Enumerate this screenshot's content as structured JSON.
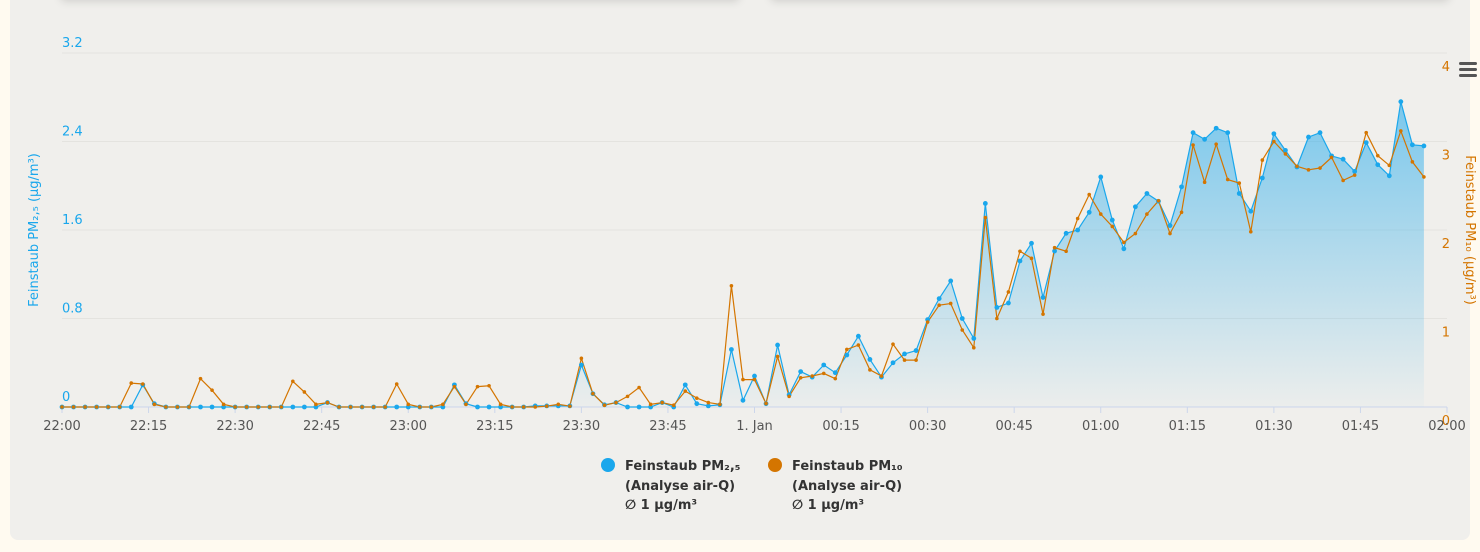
{
  "chart_data": {
    "type": "line",
    "y_label": "Feinstaub PM₂,₅ (µg/m³)",
    "y2_label": "Feinstaub PM₁₀ (µg/m³)",
    "x": [
      "22:00",
      "22:02",
      "22:04",
      "22:06",
      "22:08",
      "22:10",
      "22:12",
      "22:14",
      "22:16",
      "22:18",
      "22:20",
      "22:22",
      "22:24",
      "22:26",
      "22:28",
      "22:30",
      "22:32",
      "22:34",
      "22:36",
      "22:38",
      "22:40",
      "22:42",
      "22:44",
      "22:46",
      "22:48",
      "22:50",
      "22:52",
      "22:54",
      "22:56",
      "22:58",
      "23:00",
      "23:02",
      "23:04",
      "23:06",
      "23:08",
      "23:10",
      "23:12",
      "23:14",
      "23:16",
      "23:18",
      "23:20",
      "23:22",
      "23:24",
      "23:26",
      "23:28",
      "23:30",
      "23:32",
      "23:34",
      "23:36",
      "23:38",
      "23:40",
      "23:42",
      "23:44",
      "23:46",
      "23:48",
      "23:50",
      "23:52",
      "23:54",
      "23:56",
      "23:58",
      "00:00",
      "00:02",
      "00:04",
      "00:06",
      "00:08",
      "00:10",
      "00:12",
      "00:14",
      "00:16",
      "00:18",
      "00:20",
      "00:22",
      "00:24",
      "00:26",
      "00:28",
      "00:30",
      "00:32",
      "00:34",
      "00:36",
      "00:38",
      "00:40",
      "00:42",
      "00:44",
      "00:46",
      "00:48",
      "00:50",
      "00:52",
      "00:54",
      "00:56",
      "00:58",
      "01:00",
      "01:02",
      "01:04",
      "01:06",
      "01:08",
      "01:10",
      "01:12",
      "01:14",
      "01:16",
      "01:18",
      "01:20",
      "01:22",
      "01:24",
      "01:26",
      "01:28",
      "01:30",
      "01:32",
      "01:34",
      "01:36",
      "01:38",
      "01:40",
      "01:42",
      "01:44",
      "01:46",
      "01:48",
      "01:50",
      "01:52",
      "01:54",
      "01:56"
    ],
    "xlim": [
      "22:00",
      "02:00"
    ],
    "xticks": [
      "22:00",
      "22:15",
      "22:30",
      "22:45",
      "23:00",
      "23:15",
      "23:30",
      "23:45",
      {
        "value": "00:00",
        "label": "1. Jan"
      },
      "00:15",
      "00:30",
      "00:45",
      "01:00",
      "01:15",
      "01:30",
      "01:45",
      "02:00"
    ],
    "ylim": [
      0,
      3.2
    ],
    "yticks": [
      0,
      0.8,
      1.6,
      2.4,
      3.2
    ],
    "y2lim": [
      0,
      4
    ],
    "y2ticks": [
      0,
      1,
      2,
      3,
      4
    ],
    "grid": true,
    "legend": "bottom",
    "series": [
      {
        "name": "Feinstaub PM₂,₅",
        "legend_note": [
          "(Analyse air-Q)",
          "∅ 1 µg/m³"
        ],
        "color": "#1aa7ec",
        "area": true,
        "values": [
          0,
          0,
          0,
          0,
          0,
          0,
          0,
          0.2,
          0.03,
          0,
          0,
          0,
          0,
          0,
          0,
          0,
          0,
          0,
          0,
          0,
          0,
          0,
          0,
          0.04,
          0,
          0,
          0,
          0,
          0,
          0,
          0,
          0,
          0,
          0,
          0.2,
          0.03,
          0,
          0,
          0,
          0,
          0,
          0.01,
          0.01,
          0.01,
          0.01,
          0.38,
          0.12,
          0.02,
          0.04,
          0,
          0,
          0,
          0.04,
          0,
          0.2,
          0.03,
          0.01,
          0.02,
          0.52,
          0.06,
          0.28,
          0.03,
          0.56,
          0.11,
          0.32,
          0.27,
          0.38,
          0.31,
          0.47,
          0.64,
          0.43,
          0.27,
          0.4,
          0.48,
          0.51,
          0.79,
          0.98,
          1.14,
          0.8,
          0.62,
          1.84,
          0.9,
          0.94,
          1.32,
          1.48,
          0.99,
          1.41,
          1.57,
          1.6,
          1.76,
          2.08,
          1.69,
          1.43,
          1.81,
          1.93,
          1.86,
          1.64,
          1.99,
          2.48,
          2.42,
          2.52,
          2.48,
          1.93,
          1.77,
          2.07,
          2.47,
          2.32,
          2.17,
          2.44,
          2.48,
          2.27,
          2.24,
          2.13,
          2.39,
          2.19,
          2.09,
          2.76,
          2.37,
          2.36
        ]
      },
      {
        "name": "Feinstaub PM₁₀",
        "legend_note": [
          "(Analyse air-Q)",
          "∅ 1 µg/m³"
        ],
        "color": "#d47500",
        "axis": "y2",
        "values": [
          0,
          0,
          0,
          0,
          0,
          0,
          0.27,
          0.26,
          0.03,
          0,
          0,
          0,
          0.32,
          0.19,
          0.03,
          0,
          0,
          0,
          0,
          0,
          0.29,
          0.17,
          0.03,
          0.05,
          0,
          0,
          0,
          0,
          0,
          0.26,
          0.03,
          0,
          0,
          0.03,
          0.23,
          0.03,
          0.23,
          0.24,
          0.03,
          0,
          0,
          0,
          0.01,
          0.03,
          0.01,
          0.55,
          0.15,
          0.02,
          0.05,
          0.12,
          0.22,
          0.03,
          0.05,
          0.02,
          0.18,
          0.1,
          0.05,
          0.03,
          1.37,
          0.31,
          0.31,
          0.04,
          0.57,
          0.12,
          0.33,
          0.35,
          0.38,
          0.32,
          0.65,
          0.7,
          0.42,
          0.35,
          0.71,
          0.53,
          0.53,
          0.96,
          1.15,
          1.17,
          0.87,
          0.67,
          2.14,
          1.0,
          1.3,
          1.76,
          1.68,
          1.05,
          1.8,
          1.76,
          2.13,
          2.4,
          2.18,
          2.04,
          1.86,
          1.96,
          2.18,
          2.33,
          1.96,
          2.2,
          2.96,
          2.54,
          2.97,
          2.57,
          2.53,
          1.98,
          2.79,
          3.0,
          2.86,
          2.72,
          2.68,
          2.7,
          2.82,
          2.56,
          2.62,
          3.1,
          2.84,
          2.73,
          3.12,
          2.77,
          2.6
        ]
      }
    ]
  }
}
